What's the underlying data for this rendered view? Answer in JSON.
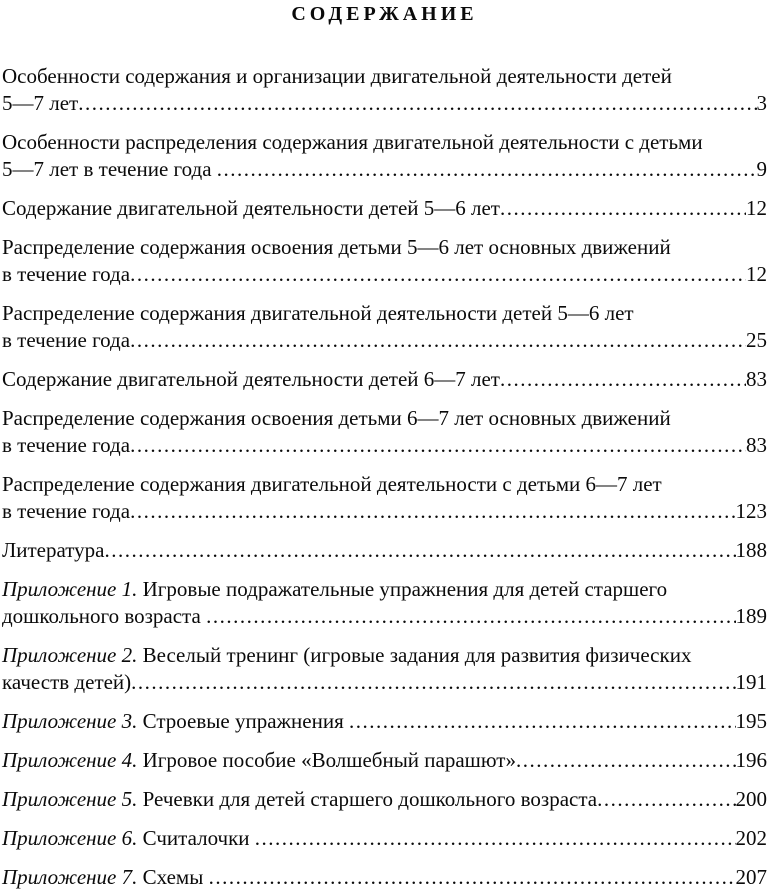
{
  "page": {
    "title": "СОДЕРЖАНИЕ"
  },
  "toc": {
    "entries": [
      {
        "lines": [
          "Особенности содержания и организации двигательной деятельности детей",
          "5—7 лет"
        ],
        "page": "3"
      },
      {
        "lines": [
          "Особенности распределения содержания двигательной деятельности с детьми",
          "5—7 лет в течение года "
        ],
        "page": "9"
      },
      {
        "lines": [
          "Содержание двигательной деятельности детей 5—6 лет"
        ],
        "page": "12"
      },
      {
        "lines": [
          "Распределение содержания освоения детьми 5—6 лет основных движений",
          "в течение года"
        ],
        "page": "12"
      },
      {
        "lines": [
          "Распределение содержания двигательной деятельности детей 5—6 лет",
          "в течение года"
        ],
        "page": "25"
      },
      {
        "lines": [
          "Содержание двигательной деятельности детей 6—7 лет"
        ],
        "page": "83"
      },
      {
        "lines": [
          "Распределение содержания освоения детьми 6—7 лет основных движений",
          "в течение года"
        ],
        "page": "83"
      },
      {
        "lines": [
          "Распределение содержания двигательной деятельности с детьми 6—7 лет",
          "в течение года"
        ],
        "page": "123"
      },
      {
        "lines": [
          "Литература"
        ],
        "page": "188"
      },
      {
        "prefix": "Приложение 1.",
        "lines": [
          "Игровые подражательные упражнения для детей старшего",
          "дошкольного возраста "
        ],
        "page": "189"
      },
      {
        "prefix": "Приложение 2.",
        "lines": [
          "Веселый тренинг (игровые задания для развития физических",
          "качеств детей)"
        ],
        "page": "191"
      },
      {
        "prefix": "Приложение 3.",
        "lines": [
          "Строевые упражнения "
        ],
        "page": "195"
      },
      {
        "prefix": "Приложение 4.",
        "lines": [
          "Игровое пособие «Волшебный парашют»"
        ],
        "page": "196"
      },
      {
        "prefix": "Приложение 5.",
        "lines": [
          "Речевки для детей старшего дошкольного возраста"
        ],
        "page": "200"
      },
      {
        "prefix": "Приложение 6.",
        "lines": [
          "Считалочки "
        ],
        "page": "202"
      },
      {
        "prefix": "Приложение 7.",
        "lines": [
          "Схемы "
        ],
        "page": "207"
      }
    ]
  }
}
